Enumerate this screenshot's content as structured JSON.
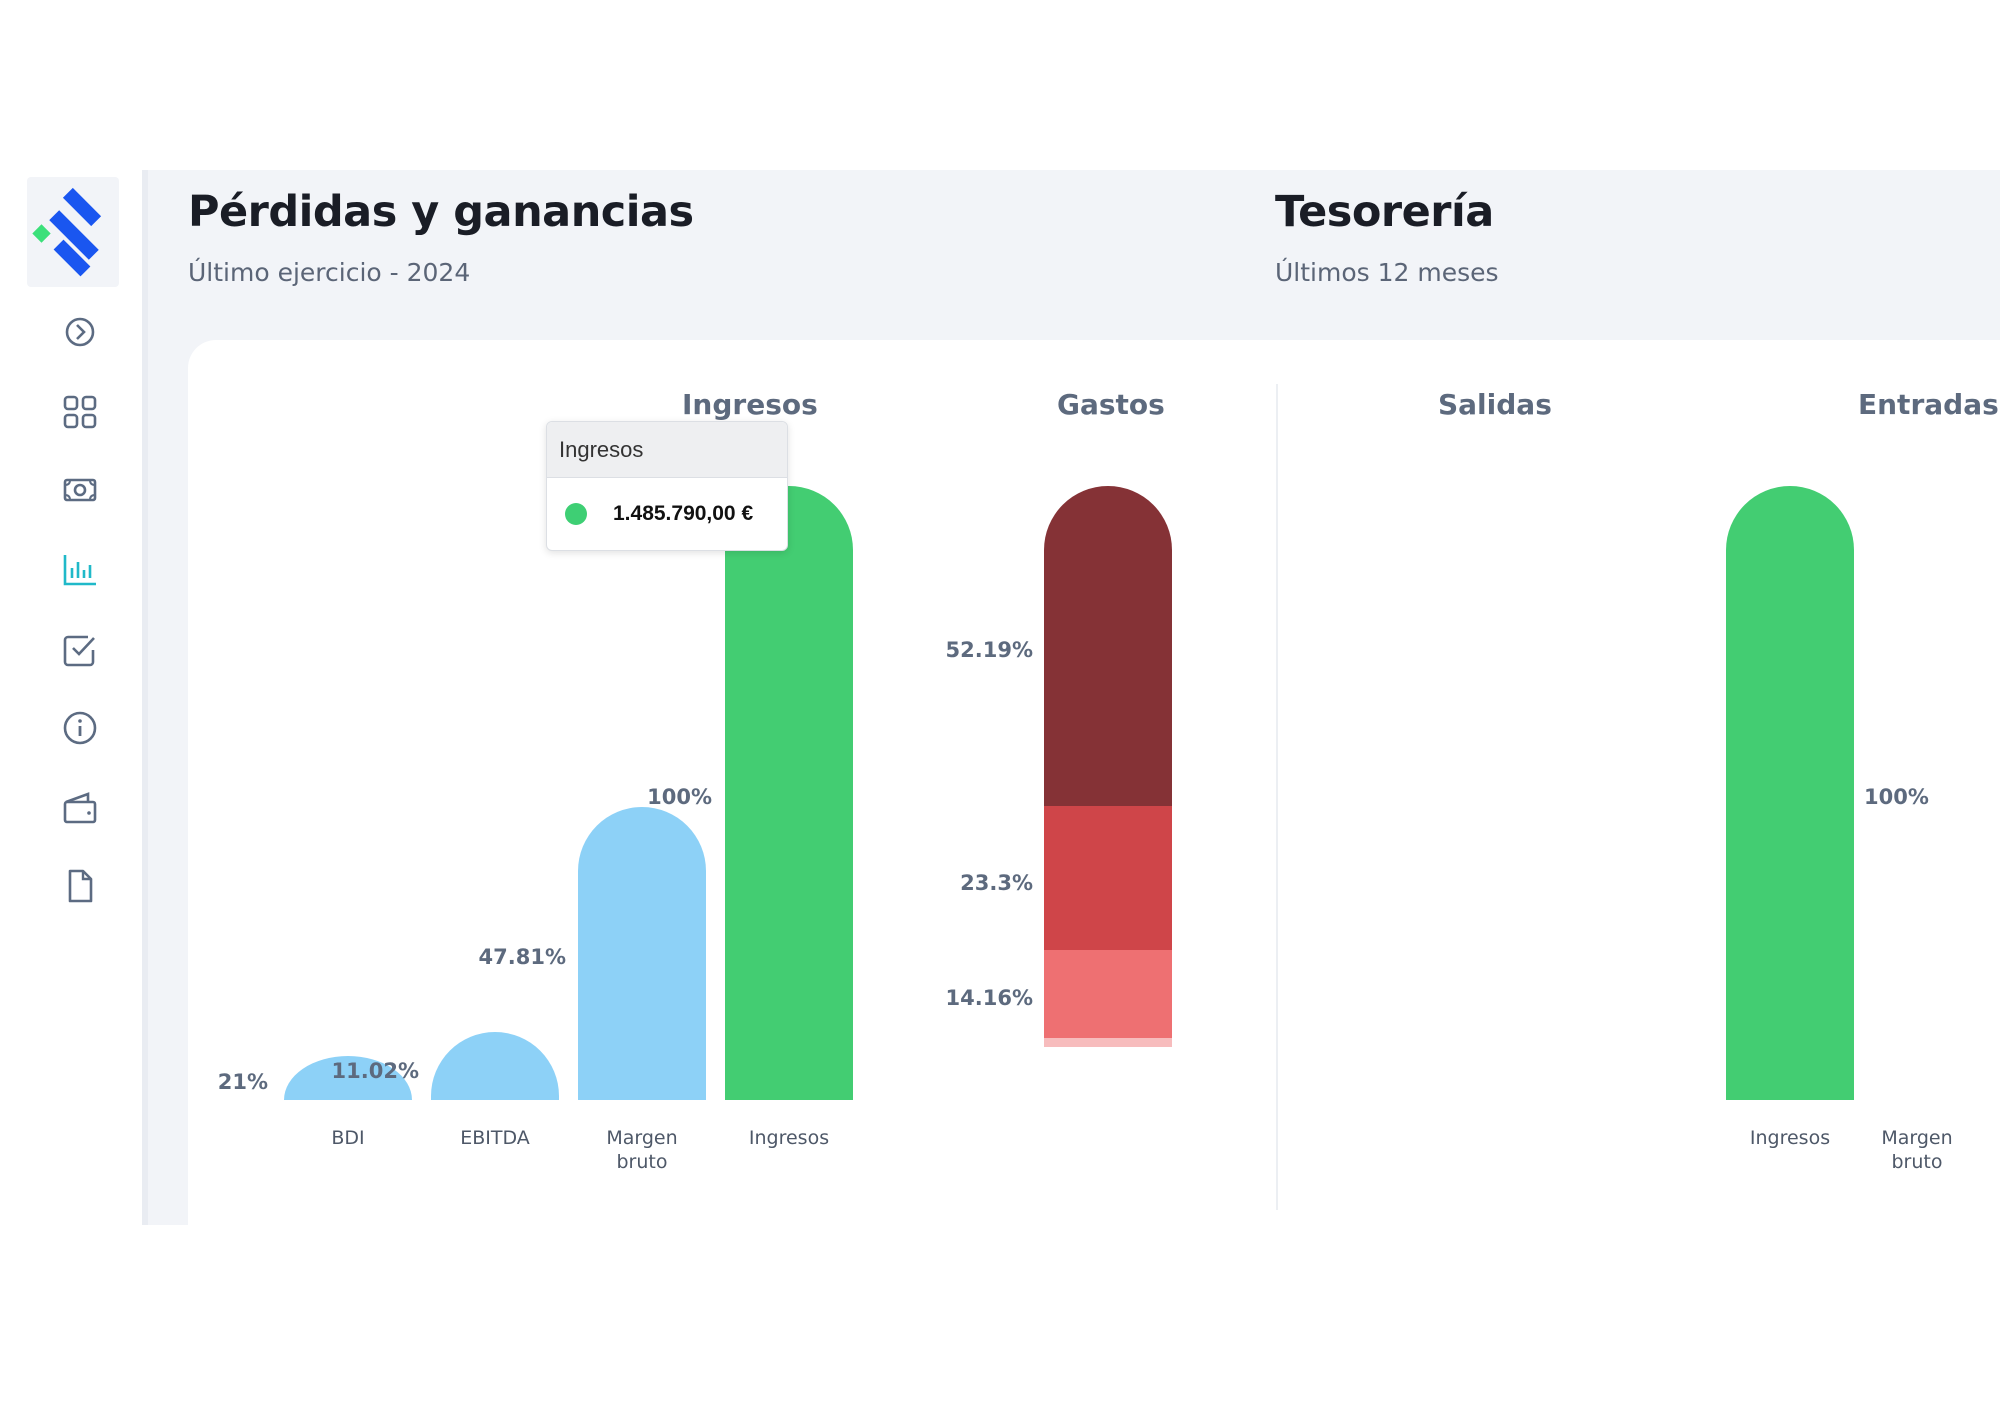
{
  "colors": {
    "ingresos_green": "#43cd72",
    "margin_blue": "#8dd1f7",
    "gasto_dark": "#853236",
    "gasto_mid": "#cf4549",
    "gasto_light": "#ee7072",
    "gasto_lightest": "#f7bcbd",
    "brand_blue": "#1a56f0",
    "brand_green": "#3be07a",
    "active_nav": "#20b9c9"
  },
  "sidebar": {
    "items": [
      {
        "icon": "chevron-right-circle-icon",
        "active": false
      },
      {
        "icon": "dashboard-grid-icon",
        "active": false
      },
      {
        "icon": "money-bill-icon",
        "active": false
      },
      {
        "icon": "bar-chart-icon",
        "active": true
      },
      {
        "icon": "checkbox-icon",
        "active": false
      },
      {
        "icon": "info-icon",
        "active": false
      },
      {
        "icon": "wallet-icon",
        "active": false
      },
      {
        "icon": "document-icon",
        "active": false
      }
    ]
  },
  "pyg": {
    "title": "Pérdidas y ganancias",
    "subtitle": "Último ejercicio - 2024"
  },
  "tesoreria": {
    "title": "Tesorería",
    "subtitle": "Últimos 12 meses"
  },
  "tooltip": {
    "title": "Ingresos",
    "value": "1.485.790,00 €"
  },
  "chart_data": [
    {
      "type": "bar",
      "panel": "Pérdidas y ganancias",
      "title": "Ingresos",
      "categories": [
        "BDI",
        "EBITDA",
        "Margen bruto",
        "Ingresos"
      ],
      "values": [
        11.02,
        21,
        47.81,
        100
      ],
      "value_labels": [
        "11.02%",
        "21%",
        "47.81%",
        "100%"
      ],
      "ylim": [
        0,
        100
      ]
    },
    {
      "type": "bar",
      "panel": "Pérdidas y ganancias",
      "title": "Gastos",
      "stacked": true,
      "segments_top_to_bottom": [
        {
          "value": 52.19,
          "label": "52.19%"
        },
        {
          "value": 23.3,
          "label": "23.3%"
        },
        {
          "value": 14.16,
          "label": "14.16%"
        },
        {
          "value": 1.5,
          "label": ""
        }
      ],
      "ylim": [
        0,
        100
      ]
    },
    {
      "type": "bar",
      "panel": "Tesorería",
      "title": "Salidas",
      "categories": [],
      "values": []
    },
    {
      "type": "bar",
      "panel": "Tesorería",
      "title": "Entradas",
      "categories": [
        "Ingresos",
        "Margen bruto"
      ],
      "values": [
        100,
        0
      ],
      "value_labels": [
        "100%",
        ""
      ],
      "ylim": [
        0,
        100
      ]
    }
  ]
}
